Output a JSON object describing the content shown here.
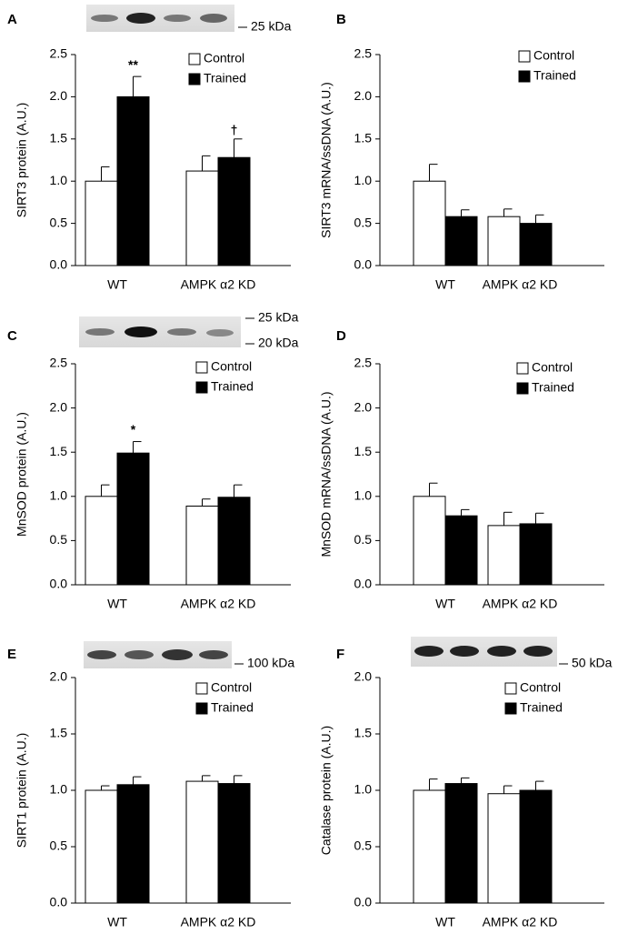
{
  "chart_data": [
    {
      "type": "bar",
      "panel": "A",
      "ylabel": "SIRT3 protein (A.U.)",
      "categories": [
        "WT",
        "AMPK α2 KD"
      ],
      "series": [
        {
          "name": "Control",
          "color": "#ffffff",
          "values": [
            1.0,
            1.12
          ],
          "errors": [
            0.17,
            0.18
          ]
        },
        {
          "name": "Trained",
          "color": "#000000",
          "values": [
            2.0,
            1.28
          ],
          "errors": [
            0.24,
            0.22
          ]
        }
      ],
      "ylim": [
        0,
        2.5
      ],
      "yticks": [
        {
          "value": 0,
          "label": "0.0"
        },
        0.5,
        {
          "value": 1,
          "label": "1.0"
        },
        1.5,
        {
          "value": 2,
          "label": "2.0"
        },
        2.5
      ],
      "annotations": [
        {
          "text": "**",
          "series": 1,
          "category": 0
        },
        {
          "text": "†",
          "series": 1,
          "category": 1
        }
      ],
      "blot_labels": [
        "25 kDa"
      ]
    },
    {
      "type": "bar",
      "panel": "B",
      "ylabel": "SIRT3 mRNA/ssDNA (A.U.)",
      "categories": [
        "WT",
        "AMPK α2 KD"
      ],
      "series": [
        {
          "name": "Control",
          "color": "#ffffff",
          "values": [
            1.0,
            0.58
          ],
          "errors": [
            0.2,
            0.09
          ]
        },
        {
          "name": "Trained",
          "color": "#000000",
          "values": [
            0.58,
            0.5
          ],
          "errors": [
            0.08,
            0.1
          ]
        }
      ],
      "ylim": [
        0,
        2.5
      ],
      "yticks": [
        {
          "value": 0,
          "label": "0.0"
        },
        0.5,
        {
          "value": 1,
          "label": "1.0"
        },
        1.5,
        {
          "value": 2,
          "label": "2.0"
        },
        2.5
      ]
    },
    {
      "type": "bar",
      "panel": "C",
      "ylabel": "MnSOD protein (A.U.)",
      "categories": [
        "WT",
        "AMPK α2 KD"
      ],
      "series": [
        {
          "name": "Control",
          "color": "#ffffff",
          "values": [
            1.0,
            0.89
          ],
          "errors": [
            0.13,
            0.08
          ]
        },
        {
          "name": "Trained",
          "color": "#000000",
          "values": [
            1.49,
            0.99
          ],
          "errors": [
            0.13,
            0.14
          ]
        }
      ],
      "ylim": [
        0,
        2.5
      ],
      "yticks": [
        {
          "value": 0,
          "label": "0.0"
        },
        0.5,
        {
          "value": 1,
          "label": "1.0"
        },
        1.5,
        {
          "value": 2,
          "label": "2.0"
        },
        2.5
      ],
      "annotations": [
        {
          "text": "*",
          "series": 1,
          "category": 0
        }
      ],
      "blot_labels": [
        "25 kDa",
        "20 kDa"
      ]
    },
    {
      "type": "bar",
      "panel": "D",
      "ylabel": "MnSOD mRNA/ssDNA (A.U.)",
      "categories": [
        "WT",
        "AMPK α2 KD"
      ],
      "series": [
        {
          "name": "Control",
          "color": "#ffffff",
          "values": [
            1.0,
            0.67
          ],
          "errors": [
            0.15,
            0.15
          ]
        },
        {
          "name": "Trained",
          "color": "#000000",
          "values": [
            0.78,
            0.69
          ],
          "errors": [
            0.07,
            0.12
          ]
        }
      ],
      "ylim": [
        0,
        2.5
      ],
      "yticks": [
        {
          "value": 0,
          "label": "0.0"
        },
        0.5,
        {
          "value": 1,
          "label": "1.0"
        },
        1.5,
        {
          "value": 2,
          "label": "2.0"
        },
        2.5
      ]
    },
    {
      "type": "bar",
      "panel": "E",
      "ylabel": "SIRT1 protein (A.U.)",
      "categories": [
        "WT",
        "AMPK α2 KD"
      ],
      "series": [
        {
          "name": "Control",
          "color": "#ffffff",
          "values": [
            1.0,
            1.08
          ],
          "errors": [
            0.04,
            0.05
          ]
        },
        {
          "name": "Trained",
          "color": "#000000",
          "values": [
            1.05,
            1.06
          ],
          "errors": [
            0.07,
            0.07
          ]
        }
      ],
      "ylim": [
        0,
        2
      ],
      "yticks": [
        {
          "value": 0,
          "label": "0.0"
        },
        0.5,
        {
          "value": 1,
          "label": "1.0"
        },
        1.5,
        {
          "value": 2,
          "label": "2.0"
        }
      ],
      "blot_labels": [
        "100 kDa"
      ]
    },
    {
      "type": "bar",
      "panel": "F",
      "ylabel": "Catalase protein (A.U.)",
      "categories": [
        "WT",
        "AMPK α2 KD"
      ],
      "series": [
        {
          "name": "Control",
          "color": "#ffffff",
          "values": [
            1.0,
            0.97
          ],
          "errors": [
            0.1,
            0.07
          ]
        },
        {
          "name": "Trained",
          "color": "#000000",
          "values": [
            1.06,
            1.0
          ],
          "errors": [
            0.05,
            0.08
          ]
        }
      ],
      "ylim": [
        0,
        2
      ],
      "yticks": [
        {
          "value": 0,
          "label": "0.0"
        },
        0.5,
        {
          "value": 1,
          "label": "1.0"
        },
        1.5,
        {
          "value": 2,
          "label": "2.0"
        }
      ],
      "blot_labels": [
        "50 kDa"
      ]
    }
  ]
}
